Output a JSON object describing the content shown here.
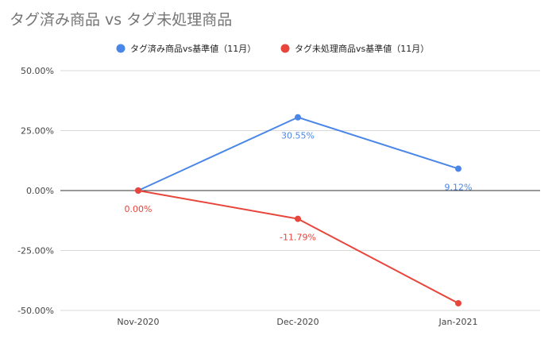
{
  "chart_data": {
    "type": "line",
    "title": "タグ済み商品 vs タグ未処理商品",
    "categories": [
      "Nov-2020",
      "Dec-2020",
      "Jan-2021"
    ],
    "series": [
      {
        "name": "タグ済み商品vs基準値（11月）",
        "color": "#4a86e8",
        "values": [
          0.0,
          30.55,
          9.12
        ],
        "labels": [
          "",
          "30.55%",
          "9.12%"
        ]
      },
      {
        "name": "タグ未処理商品vs基準値（11月）",
        "color": "#e8453c",
        "values": [
          0.0,
          -11.79,
          -47.0
        ],
        "labels": [
          "0.00%",
          "-11.79%",
          ""
        ]
      }
    ],
    "y_ticks": [
      "50.00%",
      "25.00%",
      "0.00%",
      "-25.00%",
      "-50.00%"
    ],
    "ylim": [
      -50,
      50
    ],
    "grid": true,
    "legend": "top"
  }
}
